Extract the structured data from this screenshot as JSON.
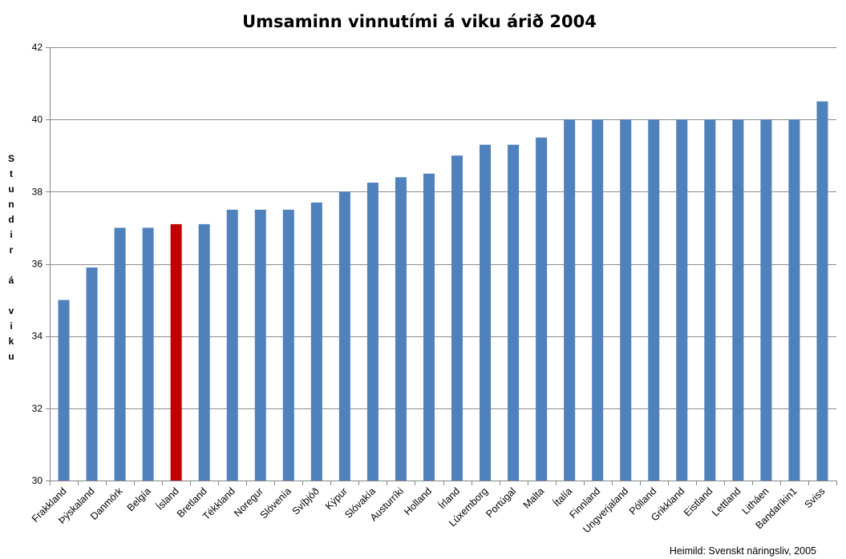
{
  "chart_data": {
    "type": "bar",
    "title": "Umsaminn vinnutími á viku árið 2004",
    "ylabel": "Stundir á viku",
    "xlabel": "",
    "ylim": [
      30,
      42
    ],
    "yticks": [
      30,
      32,
      34,
      36,
      38,
      40,
      42
    ],
    "grid": true,
    "categories": [
      "Frakkland",
      "Þýskaland",
      "Danmörk",
      "Belgía",
      "Ísland",
      "Bretland",
      "Tékkland",
      "Noregur",
      "Slóvenía",
      "Svíþjóð",
      "Kýpur",
      "Slóvakía",
      "Austurríki",
      "Holland",
      "Írland",
      "Lúxemborg",
      "Portúgal",
      "Malta",
      "Ítalía",
      "Finnland",
      "Ungverjaland",
      "Pólland",
      "Grikkland",
      "Eistland",
      "Lettland",
      "Litháen",
      "Bandaríkin1",
      "Sviss"
    ],
    "values": [
      35.0,
      35.9,
      37.0,
      37.0,
      37.1,
      37.1,
      37.5,
      37.5,
      37.5,
      37.7,
      38.0,
      38.25,
      38.4,
      38.5,
      39.0,
      39.3,
      39.3,
      39.5,
      40.0,
      40.0,
      40.0,
      40.0,
      40.0,
      40.0,
      40.0,
      40.0,
      40.0,
      40.5
    ],
    "highlight_index": 4,
    "colors": {
      "bar": "#4f81bd",
      "highlight": "#c00000",
      "grid": "#8c8c8c",
      "axis": "#868686"
    },
    "source_note": "Heimild: Svenskt näringsliv, 2005"
  }
}
